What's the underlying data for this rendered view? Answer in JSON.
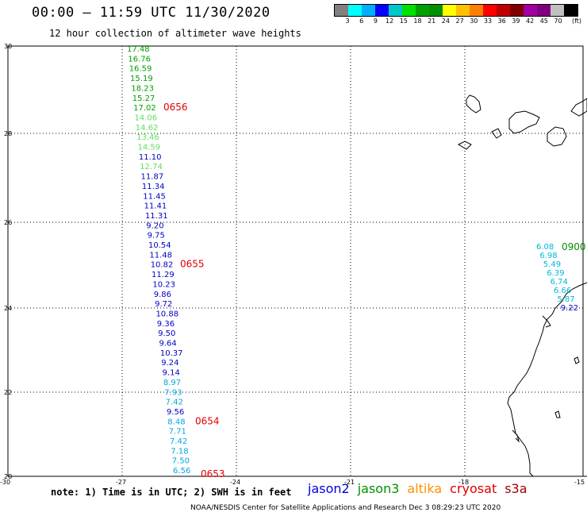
{
  "header": {
    "title": "00:00 – 11:59 UTC 11/30/2020",
    "subtitle": "12 hour collection of altimeter wave heights"
  },
  "legend": {
    "unit": "(ft)",
    "swatches": [
      "#808080",
      "#00ffff",
      "#00b0ff",
      "#0000ff",
      "#00c8c8",
      "#00e000",
      "#00a000",
      "#009000",
      "#ffff00",
      "#ffc000",
      "#ff8000",
      "#ff0000",
      "#c00000",
      "#800000",
      "#a000a0",
      "#800080",
      "#c0c0c0",
      "#000000"
    ],
    "labels": [
      "3",
      "6",
      "9",
      "12",
      "15",
      "18",
      "21",
      "24",
      "27",
      "30",
      "33",
      "36",
      "39",
      "42",
      "45",
      "70"
    ]
  },
  "map": {
    "lat_labels": [
      "30",
      "28",
      "26",
      "24",
      "22",
      "20"
    ],
    "lon_labels": [
      "-30",
      "-27",
      "-24",
      "-21",
      "-18",
      "-15"
    ],
    "track_west": [
      {
        "v": "17.48",
        "c": "#00a000"
      },
      {
        "v": "16.76",
        "c": "#00a000"
      },
      {
        "v": "16.59",
        "c": "#00a000"
      },
      {
        "v": "15.19",
        "c": "#00a000"
      },
      {
        "v": "18.23",
        "c": "#00a000"
      },
      {
        "v": "15.27",
        "c": "#00a000"
      },
      {
        "v": "17.02",
        "c": "#00a000"
      },
      {
        "v": "14.06",
        "c": "#5ee05e"
      },
      {
        "v": "14.62",
        "c": "#5ee05e"
      },
      {
        "v": "13.46",
        "c": "#5ee05e"
      },
      {
        "v": "14.59",
        "c": "#5ee05e"
      },
      {
        "v": "11.10",
        "c": "#0000c8"
      },
      {
        "v": "12.74",
        "c": "#5ee05e"
      },
      {
        "v": "11.87",
        "c": "#0000c8"
      },
      {
        "v": "11.34",
        "c": "#0000c8"
      },
      {
        "v": "11.45",
        "c": "#0000c8"
      },
      {
        "v": "11.41",
        "c": "#0000c8"
      },
      {
        "v": "11.31",
        "c": "#0000c8"
      },
      {
        "v": "9.20",
        "c": "#0000c8"
      },
      {
        "v": "9.75",
        "c": "#0000c8"
      },
      {
        "v": "10.54",
        "c": "#0000c8"
      },
      {
        "v": "11.48",
        "c": "#0000c8"
      },
      {
        "v": "10.82",
        "c": "#0000c8"
      },
      {
        "v": "11.29",
        "c": "#0000c8"
      },
      {
        "v": "10.23",
        "c": "#0000c8"
      },
      {
        "v": "9.86",
        "c": "#0000c8"
      },
      {
        "v": "9.72",
        "c": "#0000c8"
      },
      {
        "v": "10.88",
        "c": "#0000c8"
      },
      {
        "v": "9.36",
        "c": "#0000c8"
      },
      {
        "v": "9.50",
        "c": "#0000c8"
      },
      {
        "v": "9.64",
        "c": "#0000c8"
      },
      {
        "v": "10.37",
        "c": "#0000c8"
      },
      {
        "v": "9.24",
        "c": "#0000c8"
      },
      {
        "v": "9.14",
        "c": "#0000c8"
      },
      {
        "v": "8.97",
        "c": "#00a8e0"
      },
      {
        "v": "7.93",
        "c": "#00a8e0"
      },
      {
        "v": "7.42",
        "c": "#00a8e0"
      },
      {
        "v": "9.56",
        "c": "#0000c8"
      },
      {
        "v": "8.48",
        "c": "#00a8e0"
      },
      {
        "v": "7.71",
        "c": "#00a8e0"
      },
      {
        "v": "7.42",
        "c": "#00a8e0"
      },
      {
        "v": "7.18",
        "c": "#00a8e0"
      },
      {
        "v": "7.50",
        "c": "#00a8e0"
      },
      {
        "v": "6.56",
        "c": "#00a8e0"
      }
    ],
    "track_west_times": [
      {
        "t": "0656",
        "c": "#e00000"
      },
      {
        "t": "0655",
        "c": "#e00000"
      },
      {
        "t": "0654",
        "c": "#e00000"
      },
      {
        "t": "0653",
        "c": "#e00000"
      }
    ],
    "track_east": [
      {
        "v": "6.08",
        "c": "#00b8d8"
      },
      {
        "v": "6.98",
        "c": "#00b8d8"
      },
      {
        "v": "5.49",
        "c": "#00b8d8"
      },
      {
        "v": "6.39",
        "c": "#00b8d8"
      },
      {
        "v": "6.74",
        "c": "#00b8d8"
      },
      {
        "v": "6.66",
        "c": "#00b8d8"
      },
      {
        "v": "5.87",
        "c": "#00b8d8"
      },
      {
        "v": "9.22",
        "c": "#0000c8"
      }
    ],
    "track_east_time": {
      "t": "0900",
      "c": "#009000"
    }
  },
  "footer": {
    "note": "note: 1) Time is in UTC; 2) SWH is in feet",
    "credit": "NOAA/NESDIS Center for Satellite Applications and Research    Dec  3 08:29:23 UTC 2020",
    "satellites": [
      {
        "name": "jason2",
        "color": "#0000e0"
      },
      {
        "name": "jason3",
        "color": "#009000"
      },
      {
        "name": "altika",
        "color": "#ff9000"
      },
      {
        "name": "cryosat",
        "color": "#e00000"
      },
      {
        "name": "s3a",
        "color": "#a00000"
      }
    ]
  }
}
